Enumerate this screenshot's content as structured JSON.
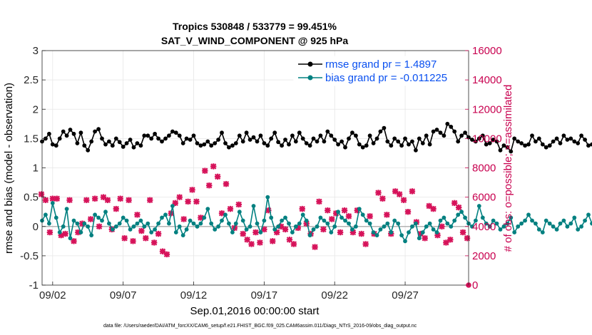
{
  "chart_data": {
    "type": "line",
    "title": "Tropics 530848 / 533779 = 99.451%",
    "subtitle": "SAT_V_WIND_COMPONENT @ 925 hPa",
    "xlabel": "Sep.01,2016 00:00:00 start",
    "ylabel_left": "rmse and bias (model - observation)",
    "ylabel_right": "# of obs: o=possible; ×=assimilated",
    "footnote": "data file: /Users/raeder/DAI/ATM_forcXX/CAM6_setup/f.e21.FHIST_BGC.f09_025.CAM6assim.011/Diags_NTrS_2016-09/obs_diag_output.nc",
    "x_range_days": [
      0.25,
      30.5
    ],
    "x_ticks": [
      {
        "day": 1,
        "label": "09/02"
      },
      {
        "day": 6,
        "label": "09/07"
      },
      {
        "day": 11,
        "label": "09/12"
      },
      {
        "day": 16,
        "label": "09/17"
      },
      {
        "day": 21,
        "label": "09/22"
      },
      {
        "day": 26,
        "label": "09/27"
      }
    ],
    "ylim_left": [
      -1,
      3
    ],
    "yticks_left": [
      "-1",
      "-0.5",
      "0",
      "0.5",
      "1",
      "1.5",
      "2",
      "2.5",
      "3"
    ],
    "ylim_right": [
      0,
      16000
    ],
    "yticks_right": [
      "0",
      "2000",
      "4000",
      "6000",
      "8000",
      "10000",
      "12000",
      "14000",
      "16000"
    ],
    "legend": {
      "position": "top-right",
      "entries": [
        "rmse grand pr = 1.4897",
        "bias grand pr = -0.011225"
      ]
    },
    "colors": {
      "rmse": "#000000",
      "bias": "#008080",
      "obs": "#d6135a",
      "zero_line": "#b3b3b3",
      "right_axis": "#c8004f",
      "legend_text": "#0a50f0"
    },
    "x_start_day": 0.25,
    "x_step_days": 0.25,
    "series": [
      {
        "name": "rmse grand pr = 1.4897",
        "axis": "left",
        "values": [
          1.45,
          1.5,
          1.58,
          1.4,
          1.38,
          1.5,
          1.62,
          1.55,
          1.65,
          1.58,
          1.42,
          1.6,
          1.38,
          1.3,
          1.45,
          1.62,
          1.66,
          1.5,
          1.4,
          1.45,
          1.38,
          1.5,
          1.44,
          1.36,
          1.42,
          1.48,
          1.35,
          1.42,
          1.38,
          1.55,
          1.55,
          1.5,
          1.58,
          1.5,
          1.45,
          1.5,
          1.55,
          1.62,
          1.6,
          1.55,
          1.42,
          1.5,
          1.48,
          1.55,
          1.42,
          1.38,
          1.4,
          1.45,
          1.38,
          1.42,
          1.48,
          1.6,
          1.42,
          1.35,
          1.38,
          1.42,
          1.55,
          1.45,
          1.6,
          1.48,
          1.52,
          1.45,
          1.55,
          1.42,
          1.38,
          1.5,
          1.6,
          1.44,
          1.38,
          1.48,
          1.4,
          1.55,
          1.45,
          1.6,
          1.5,
          1.42,
          1.38,
          1.5,
          1.45,
          1.55,
          1.45,
          1.62,
          1.55,
          1.48,
          1.4,
          1.45,
          1.35,
          1.5,
          1.6,
          1.55,
          1.4,
          1.35,
          1.38,
          1.55,
          1.42,
          1.5,
          1.62,
          1.68,
          1.45,
          1.38,
          1.5,
          1.45,
          1.38,
          1.5,
          1.4,
          1.45,
          1.3,
          1.5,
          1.42,
          1.55,
          1.4,
          1.62,
          1.65,
          1.6,
          1.55,
          1.75,
          1.7,
          1.62,
          1.45,
          1.55,
          1.6,
          1.52,
          1.48,
          1.45,
          1.5,
          1.55,
          1.4,
          1.42,
          1.48,
          1.45,
          1.3,
          1.38,
          1.35,
          1.28,
          1.5,
          1.45,
          1.42,
          1.38,
          1.4,
          1.55,
          1.45,
          1.5,
          1.4,
          1.35,
          1.38,
          1.45,
          1.5,
          1.42,
          1.55,
          1.48,
          1.5,
          1.45,
          1.42,
          1.55,
          1.48,
          1.38,
          1.4,
          1.3,
          1.42,
          1.28,
          1.5,
          1.38,
          1.45,
          1.42,
          1.48,
          1.4,
          1.35,
          1.38,
          1.45,
          1.55,
          1.38,
          1.42,
          1.45,
          1.5,
          1.52,
          1.45,
          1.55,
          1.58,
          1.5,
          1.45,
          1.48,
          1.52,
          1.55,
          1.6,
          1.58,
          1.55,
          1.65,
          1.5,
          1.55,
          1.62,
          1.55,
          1.58,
          1.5,
          1.45,
          1.55,
          1.48,
          1.5,
          1.45,
          1.5,
          1.58,
          1.55,
          1.6,
          1.5,
          1.45,
          1.4,
          1.45,
          1.48,
          1.42,
          1.4,
          1.5,
          1.55,
          1.45,
          1.62,
          1.58,
          1.52,
          1.48,
          1.42,
          1.5,
          1.45,
          1.48,
          1.5,
          1.42,
          1.45,
          1.48,
          1.5,
          1.58,
          1.62,
          1.5,
          1.45,
          1.4
        ]
      },
      {
        "name": "bias grand pr = -0.011225",
        "axis": "left",
        "values": [
          0.1,
          0.2,
          0.05,
          0.4,
          0.15,
          -0.1,
          0.0,
          0.3,
          -0.2,
          0.1,
          0.05,
          -0.1,
          0.05,
          0.0,
          -0.15,
          0.2,
          0.15,
          0.1,
          0.25,
          0.05,
          -0.05,
          0.0,
          0.05,
          0.15,
          0.1,
          -0.05,
          0.0,
          0.05,
          0.1,
          0.0,
          0.05,
          -0.1,
          -0.05,
          0.05,
          0.15,
          0.2,
          0.05,
          0.35,
          -0.1,
          0.0,
          -0.15,
          -0.05,
          0.1,
          0.05,
          0.0,
          0.05,
          0.15,
          0.3,
          0.05,
          -0.05,
          0.0,
          0.1,
          0.2,
          0.05,
          -0.1,
          0.05,
          0.25,
          0.1,
          -0.05,
          0.0,
          0.35,
          0.05,
          -0.1,
          0.1,
          0.5,
          0.15,
          -0.05,
          0.0,
          0.1,
          0.15,
          0.05,
          -0.1,
          0.0,
          0.05,
          0.2,
          0.1,
          -0.15,
          -0.05,
          0.0,
          0.15,
          0.1,
          0.05,
          -0.1,
          0.0,
          0.25,
          0.15,
          0.1,
          0.05,
          -0.05,
          0.0,
          0.3,
          0.2,
          0.1,
          0.05,
          -0.1,
          -0.15,
          -0.05,
          0.0,
          0.05,
          -0.1,
          0.1,
          0.05,
          -0.15,
          -0.25,
          -0.1,
          0.0,
          0.05,
          -0.2,
          -0.1,
          0.0,
          0.05,
          -0.05,
          -0.1,
          0.1,
          0.15,
          0.05,
          0.0,
          0.1,
          0.2,
          0.25,
          0.15,
          0.05,
          0.0,
          0.1,
          0.35,
          0.15,
          0.05,
          0.0,
          0.1,
          0.05,
          -0.05,
          0.0,
          0.05,
          0.15,
          -0.1,
          0.0,
          0.05,
          0.1,
          0.2,
          0.1,
          0.05,
          -0.05,
          -0.1,
          0.1,
          0.05,
          0.0,
          -0.05,
          0.05,
          0.1,
          0.0,
          0.05,
          0.15,
          -0.05,
          0.0,
          0.1,
          0.2,
          0.05,
          0.1,
          -0.1,
          0.0,
          0.05,
          0.15,
          0.1,
          0.0,
          -0.1,
          0.05,
          0.0,
          -0.05,
          0.15,
          0.05,
          -0.1,
          0.0,
          0.05,
          0.1,
          -0.05,
          0.0,
          0.05,
          0.15,
          0.0,
          -0.05,
          0.05,
          0.1,
          0.0,
          -0.05,
          0.05,
          0.1,
          0.05,
          0.0,
          -0.05,
          0.05,
          0.1,
          0.0,
          -0.1,
          0.0,
          0.05,
          -0.05,
          0.0,
          -0.1,
          -0.05,
          0.0,
          -0.05,
          -0.1,
          0.0,
          -0.05,
          -0.1,
          0.0,
          0.05,
          -0.05,
          -0.1,
          0.0,
          -0.05,
          0.05,
          0.0,
          -0.05,
          -0.1,
          -0.05,
          0.0,
          0.05,
          -0.1,
          -0.05,
          0.0,
          -0.05,
          -0.1,
          -0.05,
          0.0,
          0.05,
          0.0,
          -0.1,
          -0.05,
          -0.1,
          -0.05
        ]
      },
      {
        "name": "obs assimilated",
        "axis": "right",
        "x_days": [
          0.2,
          0.5,
          0.8,
          1.0,
          1.3,
          1.6,
          1.9,
          2.2,
          2.5,
          2.8,
          3.1,
          3.4,
          3.7,
          4.0,
          4.3,
          4.6,
          4.9,
          5.2,
          5.5,
          5.8,
          6.1,
          6.4,
          6.7,
          7.0,
          7.3,
          7.6,
          7.9,
          8.2,
          8.5,
          8.8,
          9.1,
          9.4,
          9.7,
          10.0,
          10.3,
          10.6,
          10.9,
          11.2,
          11.5,
          11.8,
          12.1,
          12.4,
          12.7,
          13.0,
          13.3,
          13.6,
          13.9,
          14.2,
          14.5,
          14.8,
          15.1,
          15.4,
          15.7,
          16.0,
          16.3,
          16.6,
          16.9,
          17.2,
          17.5,
          17.8,
          18.1,
          18.4,
          18.7,
          19.0,
          19.3,
          19.6,
          19.9,
          20.2,
          20.5,
          20.8,
          21.1,
          21.4,
          21.7,
          22.0,
          22.3,
          22.6,
          22.9,
          23.2,
          23.5,
          23.8,
          24.1,
          24.4,
          24.7,
          25.0,
          25.3,
          25.6,
          25.9,
          26.2,
          26.5,
          26.8,
          27.1,
          27.4,
          27.7,
          28.0,
          28.3,
          28.6,
          28.9,
          29.2,
          29.5,
          29.8,
          30.1,
          30.4
        ],
        "values": [
          6200,
          5800,
          3600,
          5900,
          5900,
          3400,
          3500,
          5800,
          3000,
          3600,
          4200,
          5800,
          4500,
          5900,
          4000,
          6000,
          5800,
          3800,
          5200,
          5900,
          3200,
          5800,
          3000,
          4800,
          3700,
          3200,
          5800,
          2900,
          3500,
          2300,
          2100,
          4900,
          5600,
          6000,
          4500,
          5700,
          6500,
          5700,
          4600,
          7800,
          6800,
          8100,
          7400,
          4900,
          6900,
          5200,
          3900,
          5500,
          3500,
          3100,
          2800,
          3600,
          2900,
          3800,
          5100,
          3000,
          3600,
          4000,
          3800,
          3100,
          2800,
          3900,
          5200,
          4200,
          3500,
          2600,
          5700,
          3800,
          5100,
          4500,
          4900,
          3600,
          5100,
          4700,
          3600,
          5100,
          3500,
          2800,
          4700,
          3500,
          6300,
          5900,
          4800,
          3500,
          6400,
          6200,
          5800,
          5000,
          6400,
          4300,
          3500,
          3200,
          5400,
          5200,
          3400,
          4000,
          2900,
          3100,
          5600,
          5300,
          3600,
          3200
        ]
      },
      {
        "name": "obs possible marker",
        "axis": "right",
        "x_days": [
          30.5
        ],
        "values": [
          0
        ]
      }
    ]
  }
}
